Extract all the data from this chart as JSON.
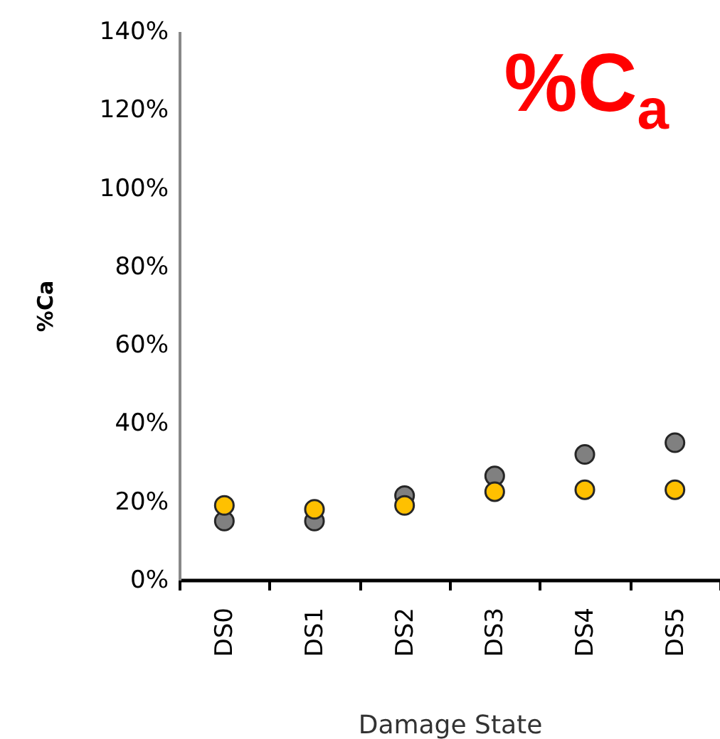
{
  "chart_data": {
    "type": "scatter",
    "title": "%C$_{a}$",
    "xlabel": "Damage State",
    "ylabel": "%Ca",
    "categories": [
      "DS0",
      "DS1",
      "DS2",
      "DS3",
      "DS4",
      "DS5"
    ],
    "series": [
      {
        "color": "#808080",
        "values": [
          15,
          15,
          21.5,
          26.5,
          32,
          35
        ]
      },
      {
        "color": "#ffc000",
        "values": [
          19,
          18,
          19,
          22.5,
          23,
          23
        ]
      }
    ],
    "ylim": [
      0,
      140
    ],
    "yticks": [
      {
        "value": 0,
        "label": "0%"
      },
      {
        "value": 20,
        "label": "20%"
      },
      {
        "value": 40,
        "label": "40%"
      },
      {
        "value": 60,
        "label": "60%"
      },
      {
        "value": 80,
        "label": "80%"
      },
      {
        "value": 100,
        "label": "100%"
      },
      {
        "value": 120,
        "label": "120%"
      },
      {
        "value": 140,
        "label": "140%"
      }
    ],
    "marker": "circle",
    "grid": false,
    "legend": false
  }
}
